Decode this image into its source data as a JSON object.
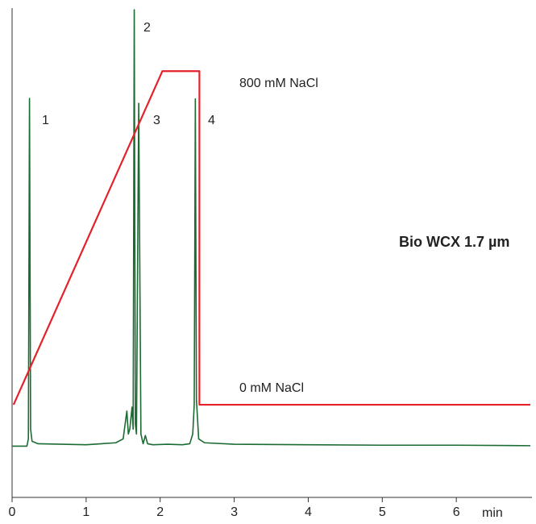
{
  "chart_data": {
    "type": "line",
    "title": "Bio WCX 1.7 µm",
    "x_label": "min",
    "xlim": [
      0,
      7.0
    ],
    "xticks": [
      0,
      1,
      2,
      3,
      4,
      5,
      6
    ],
    "ylim": [
      0,
      100
    ],
    "series": [
      {
        "color": "#1b6b32",
        "x": [
          0,
          0.2,
          0.22,
          0.235,
          0.25,
          0.27,
          0.35,
          1.0,
          1.4,
          1.5,
          1.55,
          1.57,
          1.59,
          1.62,
          1.635,
          1.65,
          1.665,
          1.68,
          1.71,
          1.74,
          1.77,
          1.8,
          1.83,
          1.9,
          2.1,
          2.3,
          2.4,
          2.44,
          2.46,
          2.475,
          2.49,
          2.52,
          2.6,
          3.0,
          4.0,
          5.0,
          6.0,
          7.0
        ],
        "values": [
          10.5,
          10.5,
          12,
          81.8,
          14,
          11.5,
          11,
          10.8,
          11.2,
          12,
          17.7,
          13,
          14,
          18.5,
          14,
          100,
          15,
          13,
          80.8,
          13,
          11,
          12.7,
          11,
          10.8,
          10.9,
          10.8,
          11,
          13,
          19,
          81.7,
          20,
          12,
          11.2,
          10.9,
          10.8,
          10.7,
          10.7,
          10.6
        ]
      },
      {
        "color": "#e3222b",
        "x": [
          0.02,
          2.03,
          2.53,
          2.53,
          7.0
        ],
        "values": [
          19,
          87.4,
          87.4,
          19,
          19
        ]
      }
    ],
    "annotations": [
      "1",
      "2",
      "3",
      "4",
      "800 mM NaCl",
      "0 mM NaCl"
    ]
  }
}
